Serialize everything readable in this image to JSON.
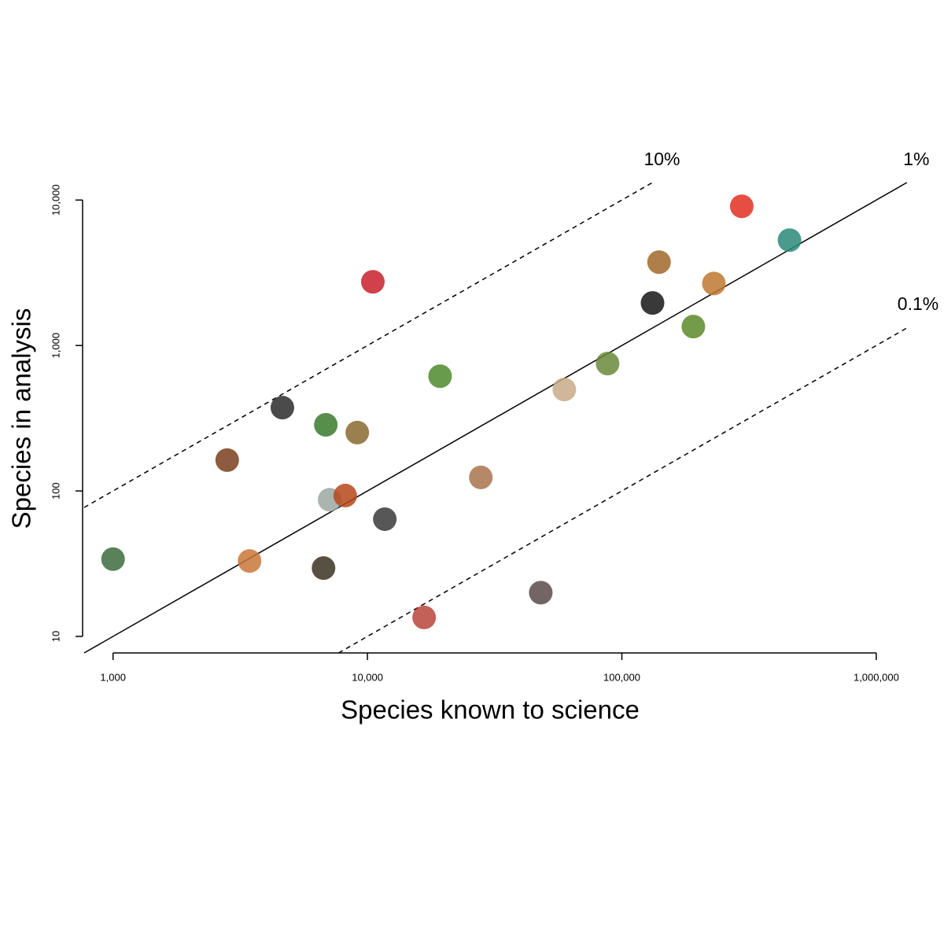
{
  "chart_data": {
    "type": "scatter",
    "x_label": "Species known to science",
    "y_label": "Species in analysis",
    "xscale": "log",
    "yscale": "log",
    "xlim": [
      770,
      1340000
    ],
    "ylim": [
      7.7,
      13200
    ],
    "xticks": [
      {
        "value": 1000,
        "label": "1,000"
      },
      {
        "value": 10000,
        "label": "10,000"
      },
      {
        "value": 100000,
        "label": "100,000"
      },
      {
        "value": 1000000,
        "label": "1,000,000"
      }
    ],
    "yticks": [
      10,
      100,
      {
        "value": 1000,
        "label": "1,000"
      },
      {
        "value": 10000,
        "label": "10,000"
      }
    ],
    "reference_lines": [
      {
        "percent": 10,
        "label": "10%",
        "style": "dashed"
      },
      {
        "percent": 1,
        "label": "1%",
        "style": "solid"
      },
      {
        "percent": 0.1,
        "label": "0.1%",
        "style": "dashed"
      }
    ],
    "x": [
      1000,
      3440,
      2810,
      4630,
      6860,
      9120,
      10500,
      7100,
      8180,
      6720,
      11700,
      19300,
      27900,
      16700,
      48000,
      59400,
      87900,
      140000,
      132000,
      230000,
      191000,
      296000,
      456000
    ],
    "values": [
      34,
      33,
      163,
      374,
      285,
      252,
      2740,
      87,
      93,
      29.5,
      64,
      615,
      124,
      13.5,
      20,
      498,
      752,
      3740,
      1960,
      2670,
      1350,
      9060,
      5300
    ],
    "colors": [
      "#3d6b3d",
      "#c9773a",
      "#7a3e1c",
      "#2b2b2b",
      "#3a7a2c",
      "#8a6a30",
      "#c8202a",
      "#9aa8a0",
      "#b5461a",
      "#3b3320",
      "#3a3a3a",
      "#4f8a2e",
      "#a8744c",
      "#b8443a",
      "#5a4a4a",
      "#c8aa88",
      "#6a8a3a",
      "#a0682a",
      "#161616",
      "#c07830",
      "#5a8a2a",
      "#e03020",
      "#2a8a7a"
    ]
  }
}
